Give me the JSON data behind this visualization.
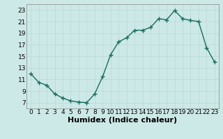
{
  "x": [
    0,
    1,
    2,
    3,
    4,
    5,
    6,
    7,
    8,
    9,
    10,
    11,
    12,
    13,
    14,
    15,
    16,
    17,
    18,
    19,
    20,
    21,
    22,
    23
  ],
  "y": [
    12.0,
    10.5,
    10.0,
    8.5,
    7.8,
    7.3,
    7.1,
    7.0,
    8.5,
    11.5,
    15.3,
    17.5,
    18.2,
    19.5,
    19.5,
    20.0,
    21.5,
    21.3,
    22.9,
    21.5,
    21.2,
    21.0,
    16.5,
    14.0
  ],
  "line_color": "#1a6b5e",
  "marker": "+",
  "marker_size": 4,
  "bg_color": "#cce9e7",
  "grid_color": "#b8d8d5",
  "xlabel": "Humidex (Indice chaleur)",
  "xlim": [
    -0.5,
    23.5
  ],
  "ylim": [
    6,
    24
  ],
  "yticks": [
    7,
    9,
    11,
    13,
    15,
    17,
    19,
    21,
    23
  ],
  "xticks": [
    0,
    1,
    2,
    3,
    4,
    5,
    6,
    7,
    8,
    9,
    10,
    11,
    12,
    13,
    14,
    15,
    16,
    17,
    18,
    19,
    20,
    21,
    22,
    23
  ],
  "tick_fontsize": 6.5,
  "xlabel_fontsize": 8,
  "line_width": 1.0
}
